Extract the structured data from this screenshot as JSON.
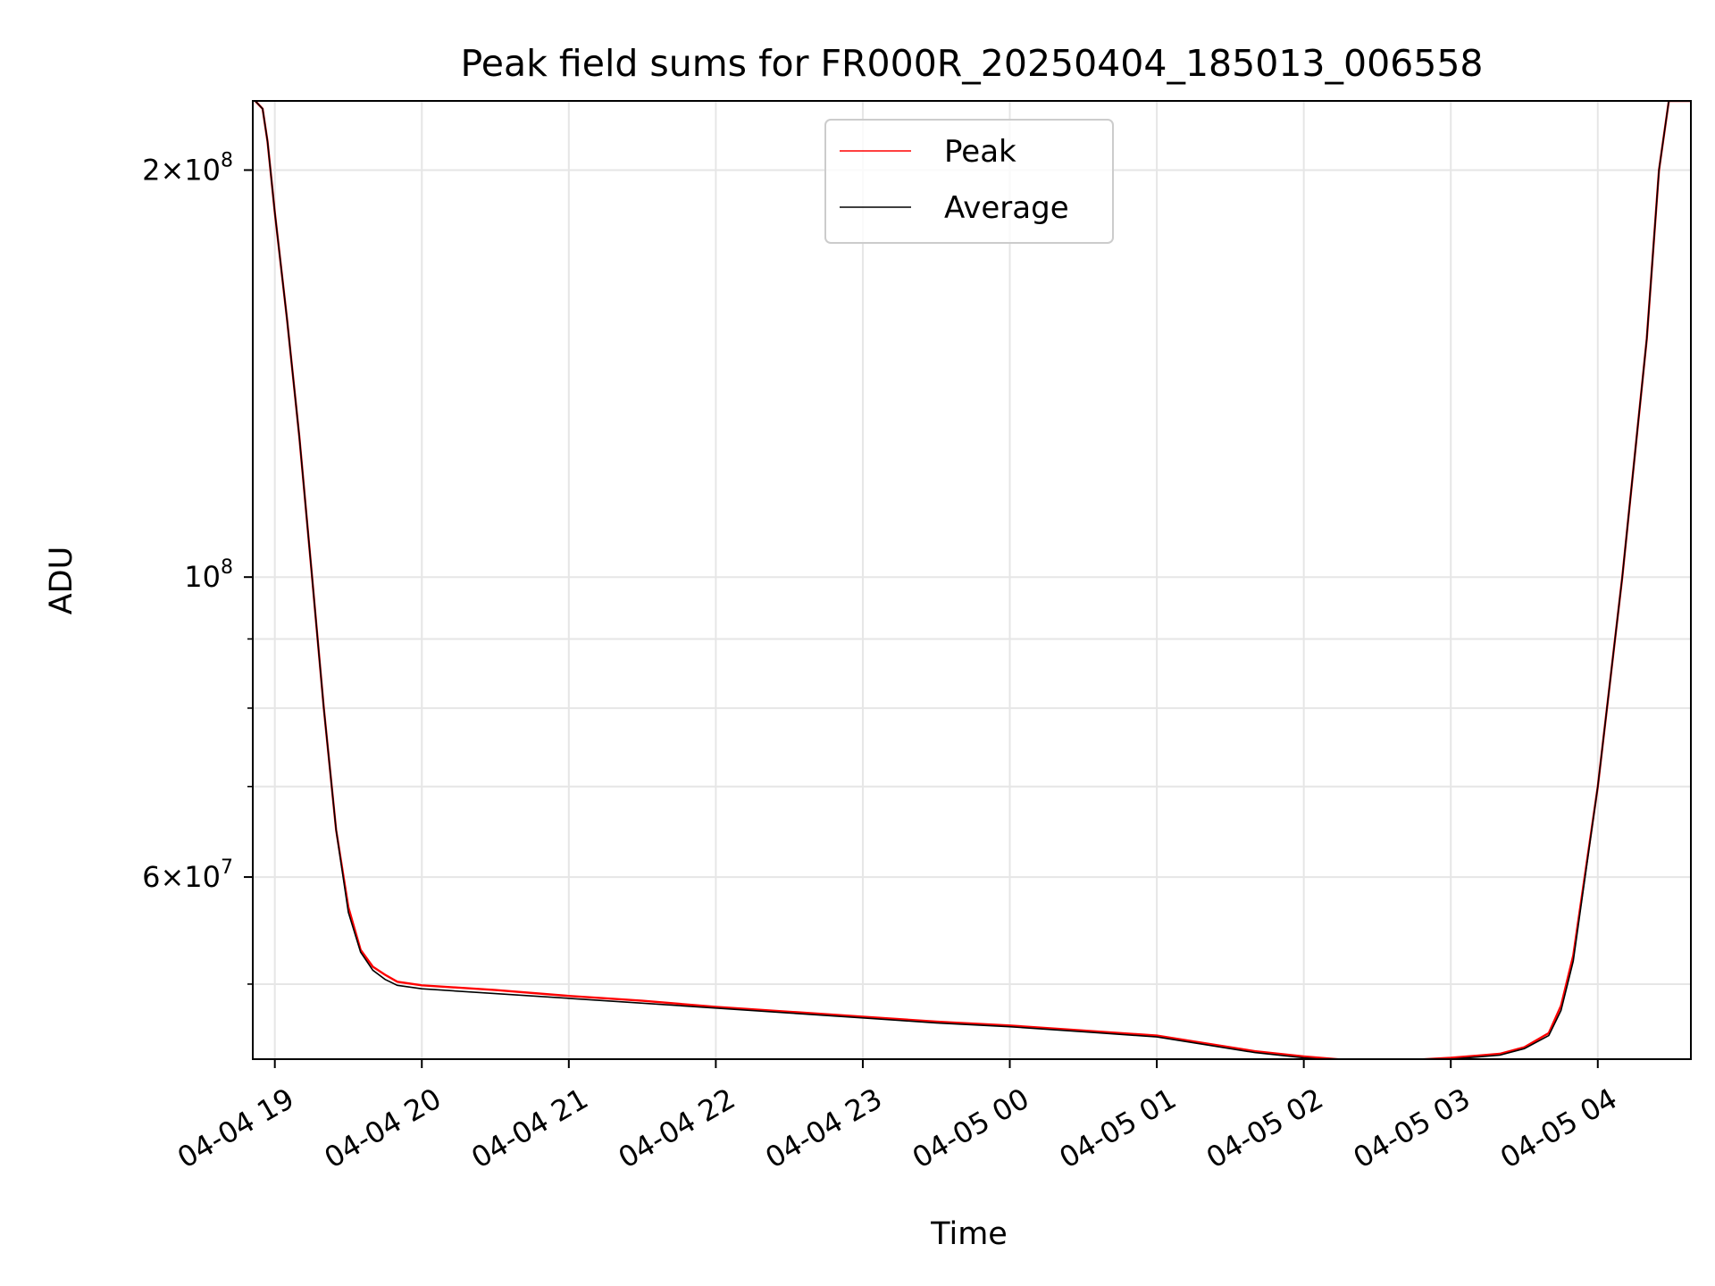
{
  "chart_data": {
    "type": "line",
    "title": "Peak field sums for FR000R_20250404_185013_006558",
    "xlabel": "Time",
    "ylabel": "ADU",
    "y_scale": "log",
    "ylim": [
      44000000,
      225000000
    ],
    "xlim": [
      "2025-04-04 18:51",
      "2025-04-05 04:38"
    ],
    "grid": true,
    "legend": {
      "position": "top-center",
      "entries": [
        "Peak",
        "Average"
      ]
    },
    "x_ticks": [
      {
        "label": "04-04 19",
        "value": "2025-04-04 19:00"
      },
      {
        "label": "04-04 20",
        "value": "2025-04-04 20:00"
      },
      {
        "label": "04-04 21",
        "value": "2025-04-04 21:00"
      },
      {
        "label": "04-04 22",
        "value": "2025-04-04 22:00"
      },
      {
        "label": "04-04 23",
        "value": "2025-04-04 23:00"
      },
      {
        "label": "04-05 00",
        "value": "2025-04-05 00:00"
      },
      {
        "label": "04-05 01",
        "value": "2025-04-05 01:00"
      },
      {
        "label": "04-05 02",
        "value": "2025-04-05 02:00"
      },
      {
        "label": "04-05 03",
        "value": "2025-04-05 03:00"
      },
      {
        "label": "04-05 04",
        "value": "2025-04-05 04:00"
      }
    ],
    "y_ticks": [
      {
        "label": "2×10⁸",
        "mantissa": "2",
        "exp": "8",
        "value": 200000000
      },
      {
        "label": "10⁸",
        "mantissa": "",
        "exp": "8",
        "value": 100000000
      },
      {
        "label": "6×10⁷",
        "mantissa": "6",
        "exp": "7",
        "value": 60000000
      }
    ],
    "y_minor_ticks": [
      50000000,
      70000000,
      80000000,
      90000000
    ],
    "series": [
      {
        "name": "Peak",
        "color": "#ff0000",
        "x": [
          "2025-04-04 18:52",
          "2025-04-04 18:55",
          "2025-04-04 18:57",
          "2025-04-04 19:00",
          "2025-04-04 19:05",
          "2025-04-04 19:10",
          "2025-04-04 19:15",
          "2025-04-04 19:20",
          "2025-04-04 19:25",
          "2025-04-04 19:30",
          "2025-04-04 19:35",
          "2025-04-04 19:40",
          "2025-04-04 19:45",
          "2025-04-04 19:50",
          "2025-04-04 20:00",
          "2025-04-04 20:30",
          "2025-04-04 21:00",
          "2025-04-04 21:30",
          "2025-04-04 22:00",
          "2025-04-04 22:30",
          "2025-04-04 23:00",
          "2025-04-04 23:30",
          "2025-04-05 00:00",
          "2025-04-05 00:30",
          "2025-04-05 01:00",
          "2025-04-05 01:20",
          "2025-04-05 01:40",
          "2025-04-05 02:00",
          "2025-04-05 02:20",
          "2025-04-05 02:40",
          "2025-04-05 03:00",
          "2025-04-05 03:20",
          "2025-04-05 03:30",
          "2025-04-05 03:40",
          "2025-04-05 03:45",
          "2025-04-05 03:50",
          "2025-04-05 04:00",
          "2025-04-05 04:10",
          "2025-04-05 04:20",
          "2025-04-05 04:25",
          "2025-04-05 04:29",
          "2025-04-05 04:38"
        ],
        "values": [
          225000000,
          222000000,
          210000000,
          186000000,
          155000000,
          127000000,
          101000000,
          80000000,
          65000000,
          57000000,
          53000000,
          51500000,
          50800000,
          50200000,
          49900000,
          49500000,
          49000000,
          48600000,
          48100000,
          47700000,
          47300000,
          46900000,
          46600000,
          46200000,
          45800000,
          45200000,
          44600000,
          44200000,
          43900000,
          43900000,
          44100000,
          44400000,
          44900000,
          46000000,
          48200000,
          52500000,
          70000000,
          100000000,
          150000000,
          200000000,
          225000000,
          225000000
        ]
      },
      {
        "name": "Average",
        "color": "#000000",
        "x": [
          "2025-04-04 18:52",
          "2025-04-04 18:55",
          "2025-04-04 18:57",
          "2025-04-04 19:00",
          "2025-04-04 19:05",
          "2025-04-04 19:10",
          "2025-04-04 19:15",
          "2025-04-04 19:20",
          "2025-04-04 19:25",
          "2025-04-04 19:30",
          "2025-04-04 19:35",
          "2025-04-04 19:40",
          "2025-04-04 19:45",
          "2025-04-04 19:50",
          "2025-04-04 20:00",
          "2025-04-04 20:30",
          "2025-04-04 21:00",
          "2025-04-04 21:30",
          "2025-04-04 22:00",
          "2025-04-04 22:30",
          "2025-04-04 23:00",
          "2025-04-04 23:30",
          "2025-04-05 00:00",
          "2025-04-05 00:30",
          "2025-04-05 01:00",
          "2025-04-05 01:20",
          "2025-04-05 01:40",
          "2025-04-05 02:00",
          "2025-04-05 02:20",
          "2025-04-05 02:40",
          "2025-04-05 03:00",
          "2025-04-05 03:20",
          "2025-04-05 03:30",
          "2025-04-05 03:40",
          "2025-04-05 03:45",
          "2025-04-05 03:50",
          "2025-04-05 04:00",
          "2025-04-05 04:10",
          "2025-04-05 04:20",
          "2025-04-05 04:25",
          "2025-04-05 04:29",
          "2025-04-05 04:38"
        ],
        "values": [
          225000000,
          222000000,
          210000000,
          186000000,
          155000000,
          127000000,
          101000000,
          80000000,
          65000000,
          56500000,
          52800000,
          51200000,
          50400000,
          49900000,
          49600000,
          49200000,
          48800000,
          48400000,
          48000000,
          47600000,
          47200000,
          46800000,
          46500000,
          46100000,
          45700000,
          45100000,
          44500000,
          44100000,
          43800000,
          43800000,
          44000000,
          44300000,
          44800000,
          45800000,
          47800000,
          52000000,
          70000000,
          100000000,
          150000000,
          200000000,
          225000000,
          225000000
        ]
      }
    ]
  }
}
